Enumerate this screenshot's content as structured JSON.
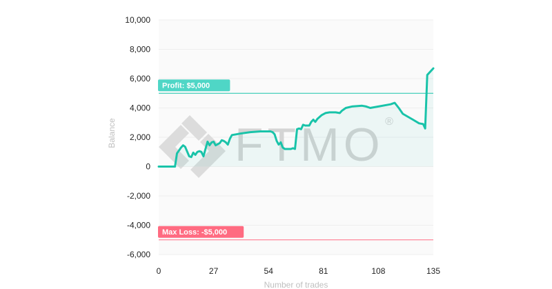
{
  "chart_data": {
    "type": "line",
    "xlabel": "Number of trades",
    "ylabel": "Balance",
    "xlim": [
      0,
      135
    ],
    "ylim": [
      -6000,
      10000
    ],
    "x_ticks": [
      {
        "value": 0,
        "label": "0"
      },
      {
        "value": 27,
        "label": "27"
      },
      {
        "value": 54,
        "label": "54"
      },
      {
        "value": 81,
        "label": "81"
      },
      {
        "value": 108,
        "label": "108"
      },
      {
        "value": 135,
        "label": "135"
      }
    ],
    "y_ticks": [
      {
        "value": 10000,
        "label": "10,000"
      },
      {
        "value": 8000,
        "label": "8,000"
      },
      {
        "value": 6000,
        "label": "6,000"
      },
      {
        "value": 4000,
        "label": "4,000"
      },
      {
        "value": 2000,
        "label": "2,000"
      },
      {
        "value": 0,
        "label": "0"
      },
      {
        "value": -2000,
        "label": "-2,000"
      },
      {
        "value": -4000,
        "label": "-4,000"
      },
      {
        "value": -6000,
        "label": "-6,000"
      }
    ],
    "grid": true,
    "series": [
      {
        "color": "#19c3a9",
        "points": [
          [
            0,
            0
          ],
          [
            5,
            0
          ],
          [
            8,
            0
          ],
          [
            9,
            900
          ],
          [
            11,
            1300
          ],
          [
            12,
            1450
          ],
          [
            13,
            1350
          ],
          [
            15,
            700
          ],
          [
            16,
            650
          ],
          [
            17,
            950
          ],
          [
            18,
            800
          ],
          [
            19,
            1000
          ],
          [
            20,
            1050
          ],
          [
            21,
            1000
          ],
          [
            22,
            700
          ],
          [
            23,
            1200
          ],
          [
            24,
            1700
          ],
          [
            25,
            1450
          ],
          [
            26,
            1650
          ],
          [
            27,
            1700
          ],
          [
            28,
            1450
          ],
          [
            30,
            1600
          ],
          [
            31,
            1800
          ],
          [
            32,
            1750
          ],
          [
            33,
            1650
          ],
          [
            34,
            1500
          ],
          [
            35,
            1900
          ],
          [
            36,
            2150
          ],
          [
            38,
            2200
          ],
          [
            40,
            2250
          ],
          [
            45,
            2350
          ],
          [
            50,
            2400
          ],
          [
            55,
            2400
          ],
          [
            56,
            2350
          ],
          [
            57,
            2200
          ],
          [
            58,
            1750
          ],
          [
            59,
            1500
          ],
          [
            60,
            1650
          ],
          [
            61,
            1300
          ],
          [
            62,
            1200
          ],
          [
            64,
            1200
          ],
          [
            65,
            1200
          ],
          [
            66,
            1250
          ],
          [
            67,
            1200
          ],
          [
            68,
            2550
          ],
          [
            69,
            2600
          ],
          [
            70,
            2550
          ],
          [
            71,
            2850
          ],
          [
            72,
            2800
          ],
          [
            74,
            2800
          ],
          [
            75,
            3050
          ],
          [
            76,
            3200
          ],
          [
            77,
            3050
          ],
          [
            78,
            3250
          ],
          [
            80,
            3500
          ],
          [
            82,
            3650
          ],
          [
            84,
            3700
          ],
          [
            87,
            3700
          ],
          [
            89,
            3650
          ],
          [
            90,
            3800
          ],
          [
            92,
            4000
          ],
          [
            95,
            4100
          ],
          [
            100,
            4150
          ],
          [
            102,
            4100
          ],
          [
            104,
            4000
          ],
          [
            108,
            4100
          ],
          [
            114,
            4250
          ],
          [
            116,
            4350
          ],
          [
            118,
            4000
          ],
          [
            120,
            3600
          ],
          [
            125,
            3200
          ],
          [
            128,
            2950
          ],
          [
            130,
            2900
          ],
          [
            131,
            2600
          ],
          [
            132,
            6250
          ],
          [
            135,
            6700
          ]
        ]
      }
    ],
    "annotations": [
      {
        "label": "Profit: $5,000",
        "y": 5000,
        "color": "#19c3a9",
        "badge_color": "#4fd6c6"
      },
      {
        "label": "Max Loss: -$5,000",
        "y": -5000,
        "color": "#ff6b81",
        "badge_color": "#ff6b81"
      }
    ],
    "watermark": {
      "text": "FTMO",
      "mark": "®"
    }
  }
}
